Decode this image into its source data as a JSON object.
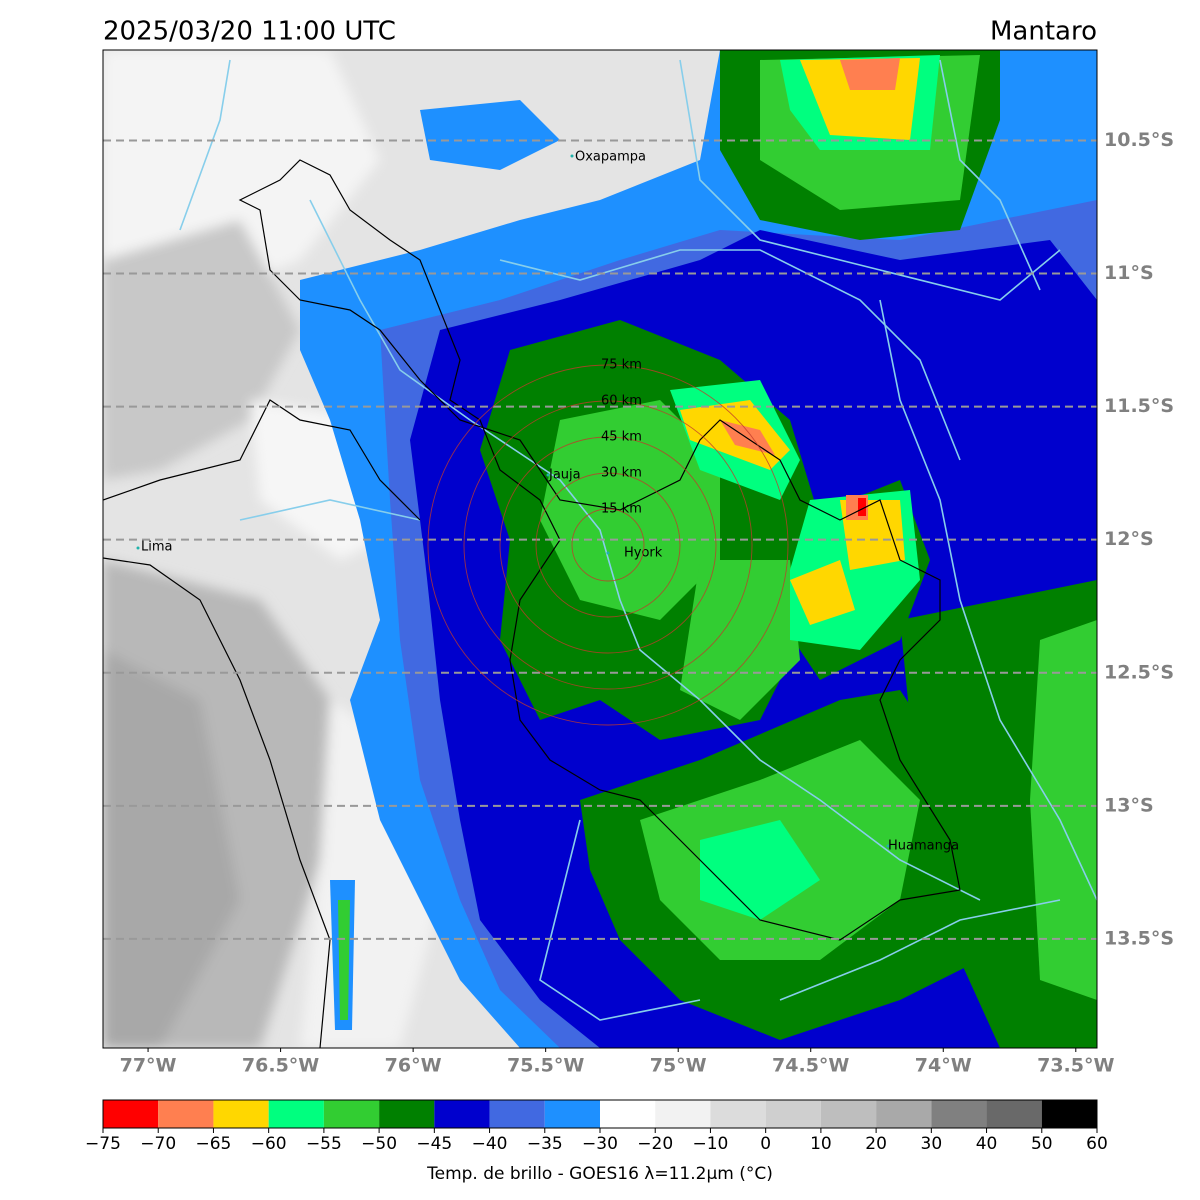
{
  "header": {
    "title": "2025/03/20 11:00 UTC",
    "region": "Mantaro"
  },
  "map": {
    "xlim": [
      -77.17,
      -73.42
    ],
    "ylim": [
      -13.91,
      -10.16
    ],
    "lon_ticks": [
      {
        "value": -77,
        "label": "77°W"
      },
      {
        "value": -76.5,
        "label": "76.5°W"
      },
      {
        "value": -76,
        "label": "76°W"
      },
      {
        "value": -75.5,
        "label": "75.5°W"
      },
      {
        "value": -75,
        "label": "75°W"
      },
      {
        "value": -74.5,
        "label": "74.5°W"
      },
      {
        "value": -74,
        "label": "74°W"
      },
      {
        "value": -73.5,
        "label": "73.5°W"
      }
    ],
    "lat_ticks": [
      {
        "value": -10.5,
        "label": "10.5°S"
      },
      {
        "value": -11,
        "label": "11°S"
      },
      {
        "value": -11.5,
        "label": "11.5°S"
      },
      {
        "value": -12,
        "label": "12°S"
      },
      {
        "value": -12.5,
        "label": "12.5°S"
      },
      {
        "value": -13,
        "label": "13°S"
      },
      {
        "value": -13.5,
        "label": "13.5°S"
      }
    ],
    "grid": true,
    "places": [
      "Oxapampa",
      "Lima",
      "Jauja",
      "Hyork",
      "Huamanga"
    ],
    "rings": [
      {
        "value": 15,
        "label": "15 km"
      },
      {
        "value": 30,
        "label": "30 km"
      },
      {
        "value": 45,
        "label": "45 km"
      },
      {
        "value": 60,
        "label": "60 km"
      },
      {
        "value": 75,
        "label": "75 km"
      }
    ]
  },
  "colorbar": {
    "label": "Temp. de brillo - GOES16 λ=11.2μm (°C)",
    "bounds": [
      {
        "value": -75,
        "label": "−75"
      },
      {
        "value": -70,
        "label": "−70"
      },
      {
        "value": -65,
        "label": "−65"
      },
      {
        "value": -60,
        "label": "−60"
      },
      {
        "value": -55,
        "label": "−55"
      },
      {
        "value": -50,
        "label": "−50"
      },
      {
        "value": -45,
        "label": "−45"
      },
      {
        "value": -40,
        "label": "−40"
      },
      {
        "value": -35,
        "label": "−35"
      },
      {
        "value": -30,
        "label": "−30"
      },
      {
        "value": -20,
        "label": "−20"
      },
      {
        "value": -10,
        "label": "−10"
      },
      0,
      10,
      20,
      30,
      40,
      50,
      60
    ],
    "colors": [
      "#ff0000",
      "#ff7f50",
      "#ffd700",
      "#00ff7f",
      "#32cd32",
      "#008000",
      "#0000cd",
      "#4169e1",
      "#1e90ff",
      "#ffffff",
      "#f2f2f2",
      "#dcdcdc",
      "#cfcfcf",
      "#bebebe",
      "#a9a9a9",
      "#808080",
      "#696969",
      "#000000"
    ]
  }
}
